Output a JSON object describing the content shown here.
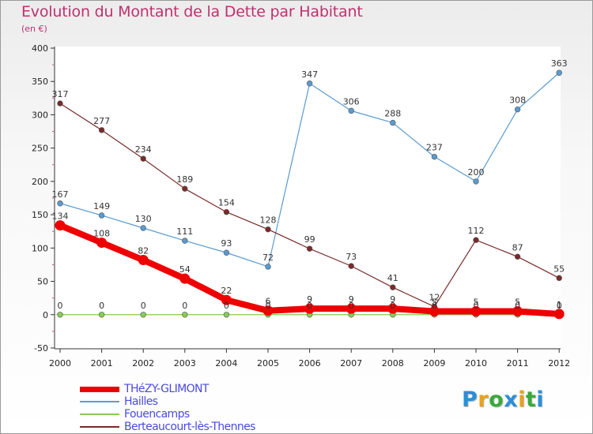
{
  "title": "Evolution du Montant de la Dette par Habitant",
  "subtitle": "(en €)",
  "logo": {
    "text": "Proxiti",
    "letter_colors": [
      "#2c8fd6",
      "#e8a21c",
      "#3aa93a",
      "#2c8fd6",
      "#e8a21c",
      "#3aa93a",
      "#2c8fd6"
    ]
  },
  "chart_data": {
    "type": "line",
    "x": [
      "2000",
      "2001",
      "2002",
      "2003",
      "2004",
      "2005",
      "2006",
      "2007",
      "2008",
      "2009",
      "2010",
      "2011",
      "2012"
    ],
    "ylim": [
      -50,
      400
    ],
    "yticks": [
      -50,
      0,
      50,
      100,
      150,
      200,
      250,
      300,
      350,
      400
    ],
    "grid": false,
    "legend_position": "bottom-left",
    "series": [
      {
        "name": "THéZY-GLIMONT",
        "color": "#ee0000",
        "emphasis": true,
        "values": [
          134,
          108,
          82,
          54,
          22,
          6,
          9,
          9,
          9,
          5,
          5,
          5,
          1
        ],
        "labels": [
          "134",
          "108",
          "82",
          "54",
          "22",
          "6",
          "9",
          "9",
          "9",
          "5",
          "5",
          "5",
          "1"
        ]
      },
      {
        "name": "Hailles",
        "color": "#5a9bd0",
        "values": [
          167,
          149,
          130,
          111,
          93,
          72,
          347,
          306,
          288,
          237,
          200,
          308,
          363
        ],
        "labels": [
          "167",
          "149",
          "130",
          "111",
          "93",
          "72",
          "347",
          "306",
          "288",
          "237",
          "200",
          "308",
          "363"
        ]
      },
      {
        "name": "Fouencamps",
        "color": "#88cc55",
        "values": [
          0,
          0,
          0,
          0,
          0,
          0,
          0,
          0,
          0,
          0,
          0,
          0,
          0
        ],
        "labels": [
          "0",
          "0",
          "0",
          "0",
          "0",
          "0",
          "0",
          "0",
          "0",
          "0",
          "0",
          "0",
          "0"
        ]
      },
      {
        "name": "Berteaucourt-lès-Thennes",
        "color": "#7a2a2a",
        "values": [
          317,
          277,
          234,
          189,
          154,
          128,
          99,
          73,
          41,
          12,
          112,
          87,
          55
        ],
        "labels": [
          "317",
          "277",
          "234",
          "189",
          "154",
          "128",
          "99",
          "73",
          "41",
          "12",
          "112",
          "87",
          "55"
        ]
      }
    ]
  }
}
